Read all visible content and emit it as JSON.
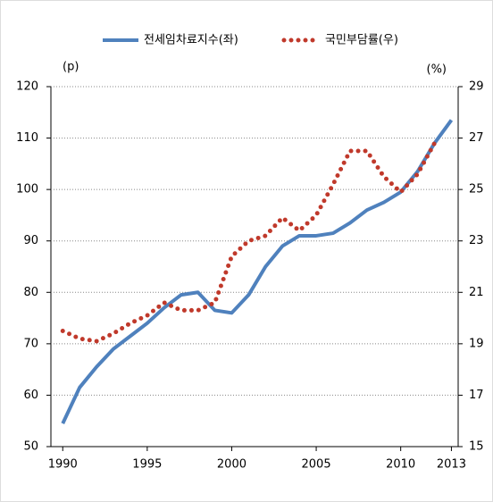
{
  "chart_data": {
    "type": "line",
    "legend": "top",
    "y_label": "(p)",
    "y2_label": "(%)",
    "x": [
      1990,
      1991,
      1992,
      1993,
      1994,
      1995,
      1996,
      1997,
      1998,
      1999,
      2000,
      2001,
      2002,
      2003,
      2004,
      2005,
      2006,
      2007,
      2008,
      2009,
      2010,
      2011,
      2012,
      2013
    ],
    "xlim": [
      1989.3,
      2013.4
    ],
    "xticks": [
      1990,
      1995,
      2000,
      2005,
      2010,
      2013
    ],
    "ylim": [
      50,
      120
    ],
    "yticks": [
      50,
      60,
      70,
      80,
      90,
      100,
      110,
      120
    ],
    "y2lim": [
      15,
      29
    ],
    "y2ticks": [
      15,
      17,
      19,
      21,
      23,
      25,
      27,
      29
    ],
    "grid": true,
    "series": [
      {
        "name": "전세임차료지수(좌)",
        "color": "#4f81bd",
        "style": "solid",
        "values": [
          54.5,
          61.5,
          65.5,
          69,
          71.5,
          74,
          77,
          79.5,
          80,
          76.5,
          76,
          79.5,
          85,
          89,
          91,
          91,
          91.5,
          93.5,
          96,
          97.5,
          99.5,
          103.5,
          109,
          113.5
        ]
      },
      {
        "name": "국민부담률(우)",
        "color": "#c0392b",
        "style": "dotted",
        "axis": "y2",
        "values": [
          19.5,
          19.2,
          19.1,
          19.4,
          19.8,
          20.1,
          20.6,
          20.3,
          20.3,
          20.6,
          22.4,
          23.0,
          23.2,
          23.9,
          23.4,
          24.0,
          25.2,
          26.5,
          26.5,
          25.5,
          24.9,
          25.6,
          26.8,
          null
        ]
      }
    ]
  }
}
